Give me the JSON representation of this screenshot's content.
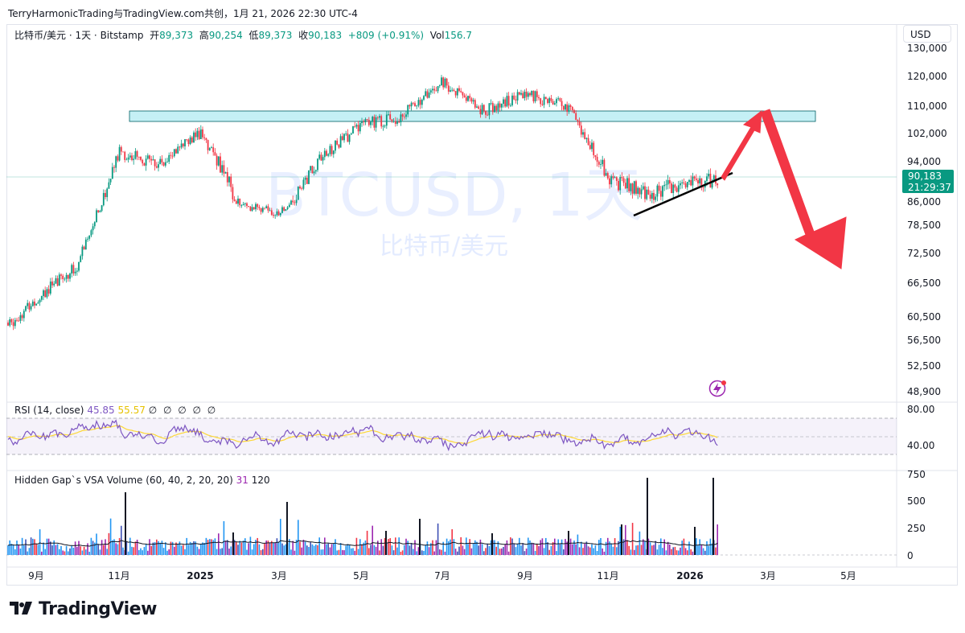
{
  "header": {
    "title": "TerryHarmonicTrading与TradingView.com共创，1月 21, 2026 22:30 UTC-4"
  },
  "legend": {
    "symbol": "比特币/美元 · 1天 · Bitstamp",
    "open_label": "开",
    "open": "89,373",
    "high_label": "高",
    "high": "90,254",
    "low_label": "低",
    "low": "89,373",
    "close_label": "收",
    "close": "90,183",
    "change": "+809 (+0.91%)",
    "vol_label": "Vol",
    "vol": "156.7"
  },
  "currency_button": "USD",
  "price_tag": {
    "price": "90,183",
    "countdown": "21:29:37"
  },
  "watermark": {
    "main": "BTCUSD, 1天",
    "sub": "比特币/美元"
  },
  "price_axis": [
    "130,000",
    "120,000",
    "110,000",
    "102,000",
    "94,000",
    "86,000",
    "78,500",
    "72,500",
    "66,500",
    "60,500",
    "56,500",
    "52,500",
    "48,900"
  ],
  "rsi_pane": {
    "title": "RSI (14, close)",
    "value1": "45.85",
    "value2": "55.57",
    "axis": [
      "80.00",
      "40.00"
    ]
  },
  "vol_pane": {
    "title": "Hidden Gap`s VSA Volume (60, 40, 2, 20, 20)",
    "value1": "31",
    "value2": "120",
    "axis": [
      "750",
      "500",
      "250",
      "0"
    ]
  },
  "time_axis": [
    "9月",
    "11月",
    "2025",
    "3月",
    "5月",
    "7月",
    "9月",
    "11月",
    "2026",
    "3月",
    "5月"
  ],
  "brand": "TradingView",
  "colors": {
    "up": "#089981",
    "down": "#f23645",
    "zone": "#b2ebf2",
    "arrow": "#f23645",
    "rsi": "#7e57c2",
    "rsi_ma": "#fdd835"
  },
  "chart_data": {
    "type": "candlestick",
    "x": [
      "2024-08",
      "2024-09",
      "2024-10",
      "2024-11",
      "2024-12",
      "2025-01",
      "2025-02",
      "2025-03",
      "2025-04",
      "2025-05",
      "2025-06",
      "2025-07",
      "2025-08",
      "2025-09",
      "2025-10",
      "2025-11",
      "2025-12",
      "2026-01"
    ],
    "close": [
      59000,
      63500,
      70000,
      96500,
      93500,
      102000,
      85000,
      82500,
      94500,
      104500,
      107000,
      118000,
      108500,
      114000,
      110000,
      90500,
      87500,
      90183
    ],
    "resistance_zone": [
      104500,
      110500
    ],
    "support_line": [
      [
        "2025-11-21",
        81500
      ],
      [
        "2026-01-22",
        91500
      ]
    ],
    "projection": {
      "up_target": 108500,
      "down_target": 67000
    },
    "current_price": 90183
  }
}
